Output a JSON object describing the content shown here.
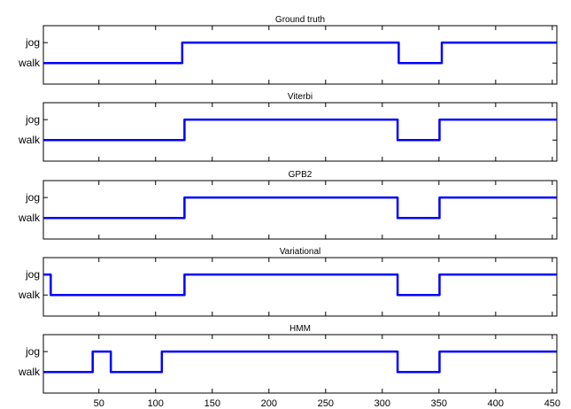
{
  "chart_data": {
    "type": "line",
    "x_range": [
      1,
      454
    ],
    "x_ticks": [
      50,
      100,
      150,
      200,
      250,
      300,
      350,
      400,
      450
    ],
    "y_categories": [
      "walk",
      "jog"
    ],
    "line_color": "#0000ff",
    "panels": [
      {
        "title": "Ground truth",
        "segments": [
          [
            1,
            123,
            "walk"
          ],
          [
            124,
            314,
            "jog"
          ],
          [
            315,
            352,
            "walk"
          ],
          [
            353,
            454,
            "jog"
          ]
        ]
      },
      {
        "title": "Viterbi",
        "segments": [
          [
            1,
            125,
            "walk"
          ],
          [
            126,
            313,
            "jog"
          ],
          [
            314,
            350,
            "walk"
          ],
          [
            351,
            454,
            "jog"
          ]
        ]
      },
      {
        "title": "GPB2",
        "segments": [
          [
            1,
            125,
            "walk"
          ],
          [
            126,
            313,
            "jog"
          ],
          [
            314,
            350,
            "walk"
          ],
          [
            351,
            454,
            "jog"
          ]
        ]
      },
      {
        "title": "Variational",
        "segments": [
          [
            1,
            7,
            "jog"
          ],
          [
            8,
            125,
            "walk"
          ],
          [
            126,
            313,
            "jog"
          ],
          [
            314,
            350,
            "walk"
          ],
          [
            351,
            454,
            "jog"
          ]
        ]
      },
      {
        "title": "HMM",
        "segments": [
          [
            1,
            44,
            "walk"
          ],
          [
            45,
            60,
            "jog"
          ],
          [
            61,
            105,
            "walk"
          ],
          [
            106,
            313,
            "jog"
          ],
          [
            314,
            350,
            "walk"
          ],
          [
            351,
            454,
            "jog"
          ]
        ]
      }
    ]
  }
}
